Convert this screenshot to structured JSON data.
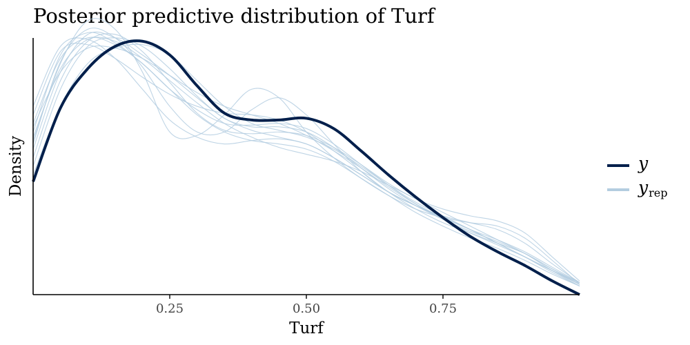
{
  "chart_data": {
    "type": "line",
    "title": "Posterior predictive distribution of Turf",
    "xlabel": "Turf",
    "ylabel": "Density",
    "xlim": [
      0,
      1
    ],
    "ylim": [
      0,
      1.6
    ],
    "y_ticks_shown": false,
    "x_ticks": [
      0.25,
      0.5,
      0.75
    ],
    "x_tick_labels": [
      "0.25",
      "0.50",
      "0.75"
    ],
    "grid": false,
    "legend_position": "right",
    "legend": [
      {
        "label": "y",
        "subscript": "",
        "color": "#011f4b"
      },
      {
        "label": "y",
        "subscript": "rep",
        "color": "#b3cde0"
      }
    ],
    "series": [
      {
        "role": "observed",
        "color": "#011f4b",
        "x": [
          0.0,
          0.05,
          0.1,
          0.15,
          0.2,
          0.25,
          0.3,
          0.35,
          0.4,
          0.45,
          0.5,
          0.55,
          0.6,
          0.65,
          0.7,
          0.75,
          0.8,
          0.85,
          0.9,
          0.95,
          1.0
        ],
        "y": [
          0.66,
          1.09,
          1.32,
          1.45,
          1.48,
          1.4,
          1.22,
          1.06,
          1.02,
          1.02,
          1.03,
          0.97,
          0.84,
          0.7,
          0.57,
          0.45,
          0.34,
          0.25,
          0.17,
          0.08,
          0.0
        ]
      },
      {
        "role": "replicated",
        "color": "#b3cde0",
        "draws": [
          {
            "y": [
              0.9,
              1.35,
              1.6,
              1.55,
              1.3,
              0.95,
              0.93,
              1.05,
              1.2,
              1.15,
              0.95,
              0.8,
              0.68,
              0.58,
              0.5,
              0.45,
              0.42,
              0.4,
              0.33,
              0.2,
              0.06
            ]
          },
          {
            "y": [
              0.95,
              1.4,
              1.53,
              1.47,
              1.35,
              1.2,
              1.05,
              0.95,
              0.9,
              0.88,
              0.85,
              0.78,
              0.68,
              0.58,
              0.48,
              0.4,
              0.33,
              0.27,
              0.2,
              0.12,
              0.05
            ]
          },
          {
            "y": [
              0.85,
              1.3,
              1.52,
              1.5,
              1.4,
              1.28,
              1.15,
              1.03,
              0.96,
              0.92,
              0.88,
              0.8,
              0.7,
              0.6,
              0.52,
              0.45,
              0.38,
              0.3,
              0.22,
              0.14,
              0.06
            ]
          },
          {
            "y": [
              1.1,
              1.45,
              1.49,
              1.38,
              1.2,
              1.02,
              0.92,
              0.88,
              0.9,
              0.91,
              0.88,
              0.8,
              0.7,
              0.6,
              0.52,
              0.45,
              0.38,
              0.3,
              0.22,
              0.13,
              0.05
            ]
          },
          {
            "y": [
              0.7,
              1.1,
              1.35,
              1.44,
              1.46,
              1.4,
              1.25,
              1.1,
              1.0,
              0.96,
              0.92,
              0.85,
              0.75,
              0.64,
              0.54,
              0.46,
              0.38,
              0.3,
              0.22,
              0.14,
              0.07
            ]
          },
          {
            "y": [
              1.0,
              1.38,
              1.5,
              1.46,
              1.35,
              1.2,
              1.08,
              1.0,
              0.99,
              1.0,
              0.97,
              0.88,
              0.76,
              0.64,
              0.53,
              0.44,
              0.36,
              0.29,
              0.22,
              0.14,
              0.06
            ]
          },
          {
            "y": [
              0.8,
              1.25,
              1.48,
              1.52,
              1.42,
              1.24,
              1.06,
              0.96,
              0.94,
              0.95,
              0.93,
              0.86,
              0.76,
              0.65,
              0.56,
              0.5,
              0.46,
              0.43,
              0.36,
              0.22,
              0.08
            ]
          },
          {
            "y": [
              1.05,
              1.42,
              1.46,
              1.38,
              1.27,
              1.17,
              1.1,
              1.06,
              1.05,
              1.02,
              0.95,
              0.84,
              0.72,
              0.6,
              0.5,
              0.42,
              0.36,
              0.3,
              0.24,
              0.15,
              0.06
            ]
          },
          {
            "y": [
              0.75,
              1.2,
              1.45,
              1.5,
              1.45,
              1.32,
              1.16,
              1.03,
              0.98,
              0.98,
              0.95,
              0.86,
              0.74,
              0.62,
              0.52,
              0.44,
              0.37,
              0.31,
              0.24,
              0.15,
              0.07
            ]
          },
          {
            "y": [
              0.92,
              1.32,
              1.49,
              1.48,
              1.38,
              1.25,
              1.12,
              1.0,
              0.92,
              0.86,
              0.82,
              0.78,
              0.72,
              0.64,
              0.56,
              0.48,
              0.4,
              0.32,
              0.24,
              0.14,
              0.05
            ]
          },
          {
            "y": [
              0.88,
              1.36,
              1.55,
              1.5,
              1.33,
              1.1,
              0.95,
              0.95,
              1.08,
              1.15,
              1.05,
              0.88,
              0.72,
              0.6,
              0.52,
              0.46,
              0.42,
              0.38,
              0.3,
              0.18,
              0.07
            ]
          },
          {
            "y": [
              0.98,
              1.3,
              1.44,
              1.44,
              1.38,
              1.28,
              1.18,
              1.1,
              1.05,
              1.0,
              0.93,
              0.84,
              0.74,
              0.63,
              0.53,
              0.45,
              0.38,
              0.32,
              0.25,
              0.16,
              0.07
            ]
          }
        ]
      }
    ]
  }
}
